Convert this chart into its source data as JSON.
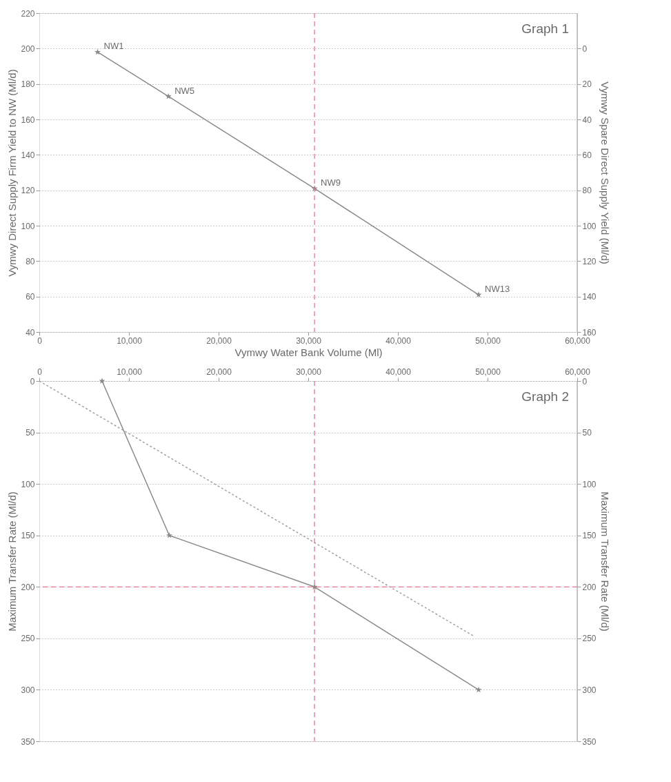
{
  "chart_data": [
    {
      "type": "line",
      "xlabel": "Vymwy Water Bank Volume (Ml)",
      "ylabel": "Vymwy Direct Supply Firm Yield to NW (Ml/d)",
      "y2label": "Vymwy Spare Direct Supply Yield (Ml/d)",
      "xlim": [
        0,
        60000
      ],
      "xticks": [
        0,
        {
          "value": 10000,
          "label": "10,000"
        },
        {
          "value": 20000,
          "label": "20,000"
        },
        {
          "value": 30000,
          "label": "30,000"
        },
        {
          "value": 40000,
          "label": "40,000"
        },
        {
          "value": 50000,
          "label": "50,000"
        },
        {
          "value": 60000,
          "label": "60,000"
        }
      ],
      "ylim": [
        40,
        220
      ],
      "yticks": [
        40,
        60,
        80,
        100,
        120,
        140,
        160,
        180,
        200,
        220
      ],
      "y2lim": [
        160,
        -20
      ],
      "y2ticks": [
        0,
        20,
        40,
        60,
        80,
        100,
        120,
        140,
        160
      ],
      "grid": "y",
      "marker": "star",
      "line_style": "solid",
      "series": [
        {
          "color": "#8a8a8a",
          "x": [
            6500,
            14400,
            30700,
            49000
          ],
          "values": [
            198,
            173,
            121,
            61
          ]
        }
      ],
      "ref_lines": [
        {
          "axis": "x",
          "value": 30700,
          "color": "#e07a8c",
          "line_style": "dashed"
        }
      ],
      "annotations": [
        "Graph 1",
        {
          "text": "NW1",
          "x": 6500,
          "y": 198
        },
        {
          "text": "NW5",
          "x": 14400,
          "y": 173
        },
        {
          "text": "NW9",
          "x": 30700,
          "y": 121
        },
        {
          "text": "NW13",
          "x": 49000,
          "y": 61
        }
      ]
    },
    {
      "type": "line",
      "ylabel": "Maximum Transfer Rate (Ml/d)",
      "y2label": "Maximum Transfer Rate (Ml/d)",
      "xlim": [
        0,
        60000
      ],
      "xticks": [
        0,
        {
          "value": 10000,
          "label": "10,000"
        },
        {
          "value": 20000,
          "label": "20,000"
        },
        {
          "value": 30000,
          "label": "30,000"
        },
        {
          "value": 40000,
          "label": "40,000"
        },
        {
          "value": 50000,
          "label": "50,000"
        },
        {
          "value": 60000,
          "label": "60,000"
        }
      ],
      "ylim": [
        350,
        0
      ],
      "yticks": [
        0,
        50,
        100,
        150,
        200,
        250,
        300,
        350
      ],
      "y2lim": [
        350,
        0
      ],
      "y2ticks": [
        0,
        50,
        100,
        150,
        200,
        250,
        300,
        350
      ],
      "grid": "y",
      "series": [
        {
          "color": "#8a8a8a",
          "x": [
            7000,
            14500,
            30700,
            49000
          ],
          "values": [
            0,
            150,
            200,
            300
          ],
          "marker": "star",
          "line_style": "solid"
        },
        {
          "color": "#a0a0a0",
          "x": [
            0,
            48500
          ],
          "values": [
            0,
            248
          ],
          "marker": "none",
          "line_style": "dotted"
        }
      ],
      "ref_lines": [
        {
          "axis": "x",
          "value": 30700,
          "color": "#e07a8c",
          "line_style": "dashed"
        },
        {
          "axis": "y",
          "value": 200,
          "color": "#e07a8c",
          "line_style": "dashed"
        }
      ],
      "annotations": [
        "Graph 2"
      ]
    }
  ]
}
